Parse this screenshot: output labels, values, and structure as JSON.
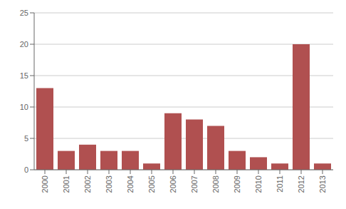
{
  "chart_data": {
    "type": "bar",
    "categories": [
      "2000",
      "2001",
      "2002",
      "2003",
      "2004",
      "2005",
      "2006",
      "2007",
      "2008",
      "2009",
      "2010",
      "2011",
      "2012",
      "2013"
    ],
    "values": [
      13,
      3,
      4,
      3,
      3,
      1,
      9,
      8,
      7,
      3,
      2,
      1,
      20,
      1
    ],
    "color": "#b05050",
    "ylim": [
      0,
      25
    ],
    "yticks": [
      0,
      5,
      10,
      15,
      20,
      25
    ],
    "grid": true
  }
}
